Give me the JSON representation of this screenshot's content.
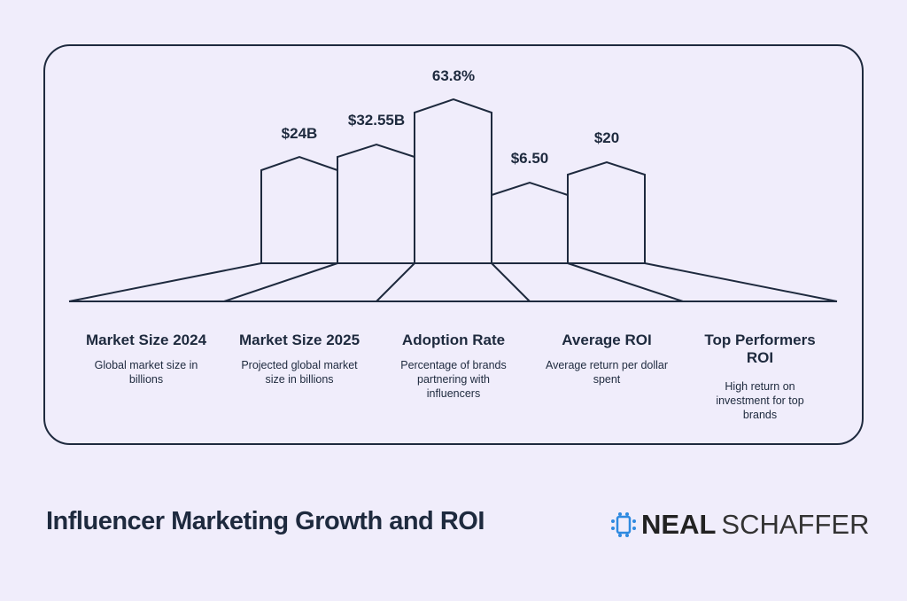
{
  "colors": {
    "background": "#f0edfb",
    "line": "#1e2a3e",
    "logo_icon": "#2f8ae0"
  },
  "items": [
    {
      "value": "$24B",
      "title": "Market Size 2024",
      "desc": "Global market size in billions"
    },
    {
      "value": "$32.55B",
      "title": "Market Size 2025",
      "desc": "Projected global market size in billions"
    },
    {
      "value": "63.8%",
      "title": "Adoption Rate",
      "desc": "Percentage of brands partnering with influencers"
    },
    {
      "value": "$6.50",
      "title": "Average ROI",
      "desc": "Average return per dollar spent"
    },
    {
      "value": "$20",
      "title": "Top Performers ROI",
      "desc": "High return on investment for top brands"
    }
  ],
  "footer": {
    "title": "Influencer Marketing Growth and ROI",
    "logo_bold": "NEAL",
    "logo_light": "SCHAFFER"
  }
}
